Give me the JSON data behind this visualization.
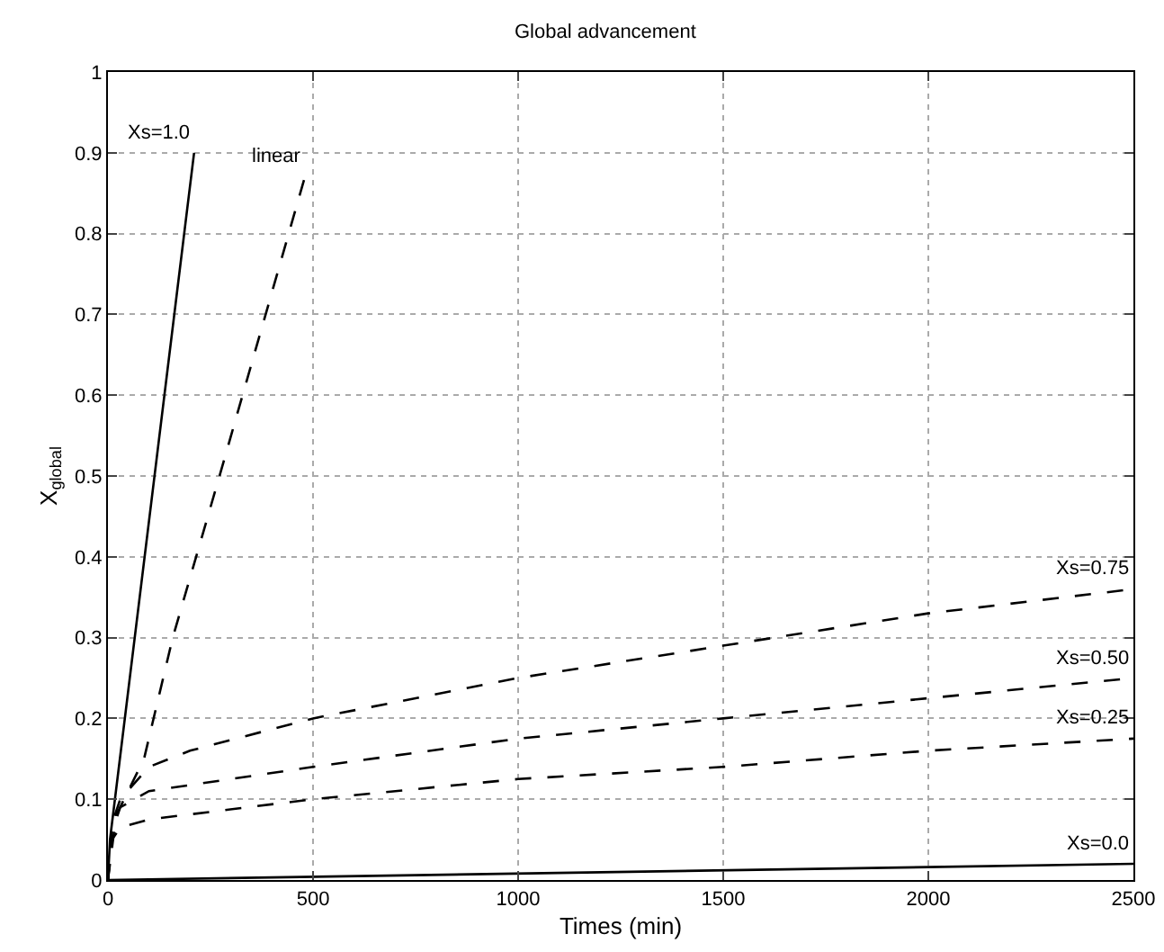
{
  "chart_data": {
    "type": "line",
    "title": "Global advancement",
    "xlabel": "Times (min)",
    "ylabel": "X$_{global}$",
    "xlim": [
      0,
      2500
    ],
    "xticks": [
      0,
      500,
      1000,
      1500,
      2000,
      2500
    ],
    "ylim": [
      0,
      1
    ],
    "yticks": [
      0,
      0.1,
      0.2,
      0.3,
      0.4,
      0.5,
      0.6,
      0.7,
      0.8,
      0.9,
      1
    ],
    "grid": true,
    "marker": "none",
    "series": [
      {
        "name": "Xs=1.0",
        "color": "#000000",
        "line_style": "solid",
        "x": [
          0,
          5,
          210
        ],
        "values": [
          0,
          0.05,
          0.9
        ]
      },
      {
        "name": "linear",
        "color": "#000000",
        "line_style": "dashed",
        "x": [
          0,
          20,
          88,
          158,
          272,
          480
        ],
        "values": [
          0,
          0.08,
          0.15,
          0.3,
          0.5,
          0.87
        ]
      },
      {
        "name": "Xs=0.75",
        "color": "#000000",
        "line_style": "dashed",
        "x": [
          0,
          10,
          30,
          100,
          200,
          500,
          1000,
          1500,
          2000,
          2500
        ],
        "values": [
          0,
          0.07,
          0.1,
          0.14,
          0.16,
          0.2,
          0.25,
          0.29,
          0.33,
          0.36
        ]
      },
      {
        "name": "Xs=0.50",
        "color": "#000000",
        "line_style": "dashed",
        "x": [
          0,
          10,
          30,
          100,
          500,
          1000,
          1500,
          2000,
          2500
        ],
        "values": [
          0,
          0.06,
          0.09,
          0.11,
          0.14,
          0.175,
          0.2,
          0.225,
          0.25
        ]
      },
      {
        "name": "Xs=0.25",
        "color": "#000000",
        "line_style": "dashed",
        "x": [
          0,
          10,
          30,
          100,
          500,
          1000,
          1500,
          2000,
          2500
        ],
        "values": [
          0,
          0.05,
          0.065,
          0.075,
          0.1,
          0.125,
          0.14,
          0.16,
          0.175
        ]
      },
      {
        "name": "Xs=0.0",
        "color": "#000000",
        "line_style": "solid",
        "x": [
          0,
          2500
        ],
        "values": [
          0,
          0.02
        ]
      }
    ]
  }
}
